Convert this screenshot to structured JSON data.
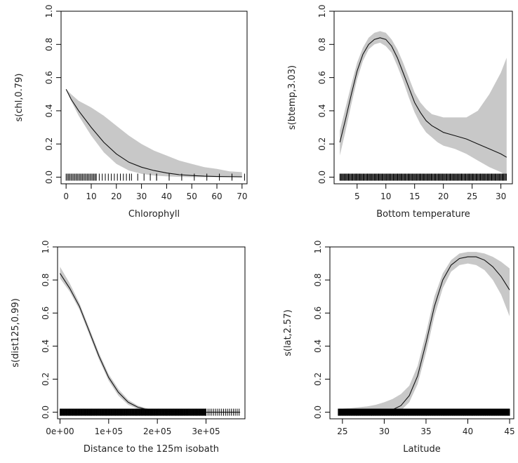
{
  "chart_data": [
    {
      "type": "line",
      "xlabel": "Chlorophyll",
      "ylabel": "s(chl,0.79)",
      "xlim": [
        -2,
        72
      ],
      "ylim": [
        -0.04,
        1.0
      ],
      "xticks": [
        0,
        10,
        20,
        30,
        40,
        50,
        60,
        70
      ],
      "xticklabels": [
        "0",
        "10",
        "20",
        "30",
        "40",
        "50",
        "60",
        "70"
      ],
      "yticks": [
        0.0,
        0.2,
        0.4,
        0.6,
        0.8,
        1.0
      ],
      "yticklabels": [
        "0.0",
        "0.2",
        "0.4",
        "0.6",
        "0.8",
        "1.0"
      ],
      "colors": {
        "band": "#c8c8c8",
        "line": "#111111",
        "rug": "#000000"
      },
      "series": [
        {
          "x": [
            0,
            2,
            5,
            10,
            15,
            20,
            25,
            30,
            35,
            40,
            45,
            50,
            55,
            60,
            65,
            70
          ],
          "y": [
            0.53,
            0.47,
            0.4,
            0.3,
            0.21,
            0.14,
            0.09,
            0.06,
            0.04,
            0.025,
            0.015,
            0.01,
            0.006,
            0.004,
            0.003,
            0.002
          ],
          "lower": [
            0.53,
            0.46,
            0.37,
            0.25,
            0.15,
            0.08,
            0.04,
            0.02,
            0.01,
            0.005,
            0.002,
            0.0,
            0.0,
            0.0,
            0.0,
            0.0
          ],
          "upper": [
            0.53,
            0.5,
            0.46,
            0.42,
            0.37,
            0.31,
            0.25,
            0.2,
            0.16,
            0.13,
            0.1,
            0.08,
            0.06,
            0.05,
            0.035,
            0.03
          ]
        }
      ],
      "rug_ranges": [
        [
          0,
          12,
          0.5
        ],
        [
          12,
          26,
          1.2
        ],
        [
          26,
          36,
          2.5
        ],
        [
          36,
          72,
          5
        ]
      ]
    },
    {
      "type": "line",
      "xlabel": "Bottom temperature",
      "ylabel": "s(btemp,3.03)",
      "xlim": [
        1,
        32
      ],
      "ylim": [
        -0.04,
        1.0
      ],
      "xticks": [
        5,
        10,
        15,
        20,
        25,
        30
      ],
      "xticklabels": [
        "5",
        "10",
        "15",
        "20",
        "25",
        "30"
      ],
      "yticks": [
        0.0,
        0.2,
        0.4,
        0.6,
        0.8,
        1.0
      ],
      "yticklabels": [
        "0.0",
        "0.2",
        "0.4",
        "0.6",
        "0.8",
        "1.0"
      ],
      "colors": {
        "band": "#c8c8c8",
        "line": "#111111",
        "rug": "#000000"
      },
      "series": [
        {
          "x": [
            2,
            3,
            4,
            5,
            6,
            7,
            8,
            9,
            10,
            11,
            12,
            13,
            14,
            15,
            16,
            17,
            18,
            19,
            20,
            22,
            24,
            26,
            28,
            30,
            31
          ],
          "y": [
            0.21,
            0.35,
            0.5,
            0.64,
            0.74,
            0.8,
            0.83,
            0.84,
            0.83,
            0.79,
            0.72,
            0.63,
            0.54,
            0.45,
            0.39,
            0.34,
            0.31,
            0.29,
            0.27,
            0.25,
            0.23,
            0.2,
            0.17,
            0.14,
            0.12
          ],
          "lower": [
            0.13,
            0.28,
            0.44,
            0.59,
            0.7,
            0.77,
            0.8,
            0.81,
            0.79,
            0.75,
            0.67,
            0.58,
            0.48,
            0.39,
            0.32,
            0.27,
            0.24,
            0.21,
            0.19,
            0.17,
            0.14,
            0.1,
            0.06,
            0.03,
            0.01
          ],
          "upper": [
            0.28,
            0.42,
            0.56,
            0.69,
            0.78,
            0.84,
            0.87,
            0.88,
            0.87,
            0.83,
            0.77,
            0.69,
            0.6,
            0.51,
            0.45,
            0.41,
            0.38,
            0.37,
            0.36,
            0.36,
            0.36,
            0.4,
            0.5,
            0.63,
            0.72
          ]
        }
      ],
      "rug_ranges": [
        [
          2,
          31,
          0.15
        ]
      ]
    },
    {
      "type": "line",
      "xlabel": "Distance to the 125m isobath",
      "ylabel": "s(dist125,0.99)",
      "xlim": [
        -5000,
        380000
      ],
      "ylim": [
        -0.04,
        1.0
      ],
      "xticks": [
        0,
        100000,
        200000,
        300000
      ],
      "xticklabels": [
        "0e+00",
        "1e+05",
        "2e+05",
        "3e+05"
      ],
      "yticks": [
        0.0,
        0.2,
        0.4,
        0.6,
        0.8,
        1.0
      ],
      "yticklabels": [
        "0.0",
        "0.2",
        "0.4",
        "0.6",
        "0.8",
        "1.0"
      ],
      "colors": {
        "band": "#c8c8c8",
        "line": "#111111",
        "rug": "#000000"
      },
      "series": [
        {
          "x": [
            0,
            20000,
            40000,
            60000,
            80000,
            100000,
            120000,
            140000,
            160000,
            180000,
            200000,
            250000,
            300000,
            370000
          ],
          "y": [
            0.84,
            0.75,
            0.64,
            0.49,
            0.34,
            0.21,
            0.12,
            0.06,
            0.03,
            0.015,
            0.008,
            0.002,
            0.0,
            0.0
          ],
          "lower": [
            0.81,
            0.73,
            0.62,
            0.47,
            0.32,
            0.19,
            0.1,
            0.045,
            0.02,
            0.008,
            0.003,
            0.0,
            0.0,
            0.0
          ],
          "upper": [
            0.88,
            0.78,
            0.66,
            0.51,
            0.36,
            0.23,
            0.14,
            0.075,
            0.04,
            0.022,
            0.013,
            0.004,
            0.002,
            0.001
          ]
        }
      ],
      "rug_ranges": [
        [
          0,
          300000,
          1000
        ],
        [
          300000,
          370000,
          4000
        ]
      ]
    },
    {
      "type": "line",
      "xlabel": "Latitude",
      "ylabel": "s(lat,2.57)",
      "xlim": [
        23.5,
        45.5
      ],
      "ylim": [
        -0.04,
        1.0
      ],
      "xticks": [
        25,
        30,
        35,
        40,
        45
      ],
      "xticklabels": [
        "25",
        "30",
        "35",
        "40",
        "45"
      ],
      "yticks": [
        0.0,
        0.2,
        0.4,
        0.6,
        0.8,
        1.0
      ],
      "yticklabels": [
        "0.0",
        "0.2",
        "0.4",
        "0.6",
        "0.8",
        "1.0"
      ],
      "colors": {
        "band": "#c8c8c8",
        "line": "#111111",
        "rug": "#000000"
      },
      "series": [
        {
          "x": [
            24.5,
            26,
            28,
            29,
            30,
            31,
            32,
            33,
            34,
            35,
            36,
            37,
            38,
            39,
            40,
            41,
            42,
            43,
            44,
            45
          ],
          "y": [
            0.0,
            0.0,
            0.0,
            0.0,
            0.003,
            0.015,
            0.04,
            0.1,
            0.22,
            0.42,
            0.64,
            0.8,
            0.89,
            0.93,
            0.94,
            0.94,
            0.92,
            0.88,
            0.82,
            0.74
          ],
          "lower": [
            0.0,
            0.0,
            0.0,
            0.0,
            0.0,
            0.0,
            0.01,
            0.06,
            0.17,
            0.36,
            0.58,
            0.75,
            0.85,
            0.89,
            0.9,
            0.89,
            0.86,
            0.8,
            0.71,
            0.58
          ],
          "upper": [
            0.02,
            0.025,
            0.035,
            0.045,
            0.06,
            0.08,
            0.11,
            0.16,
            0.28,
            0.48,
            0.7,
            0.84,
            0.92,
            0.96,
            0.97,
            0.97,
            0.96,
            0.94,
            0.91,
            0.87
          ]
        }
      ],
      "rug_ranges": [
        [
          24.5,
          45,
          0.05
        ]
      ]
    }
  ]
}
